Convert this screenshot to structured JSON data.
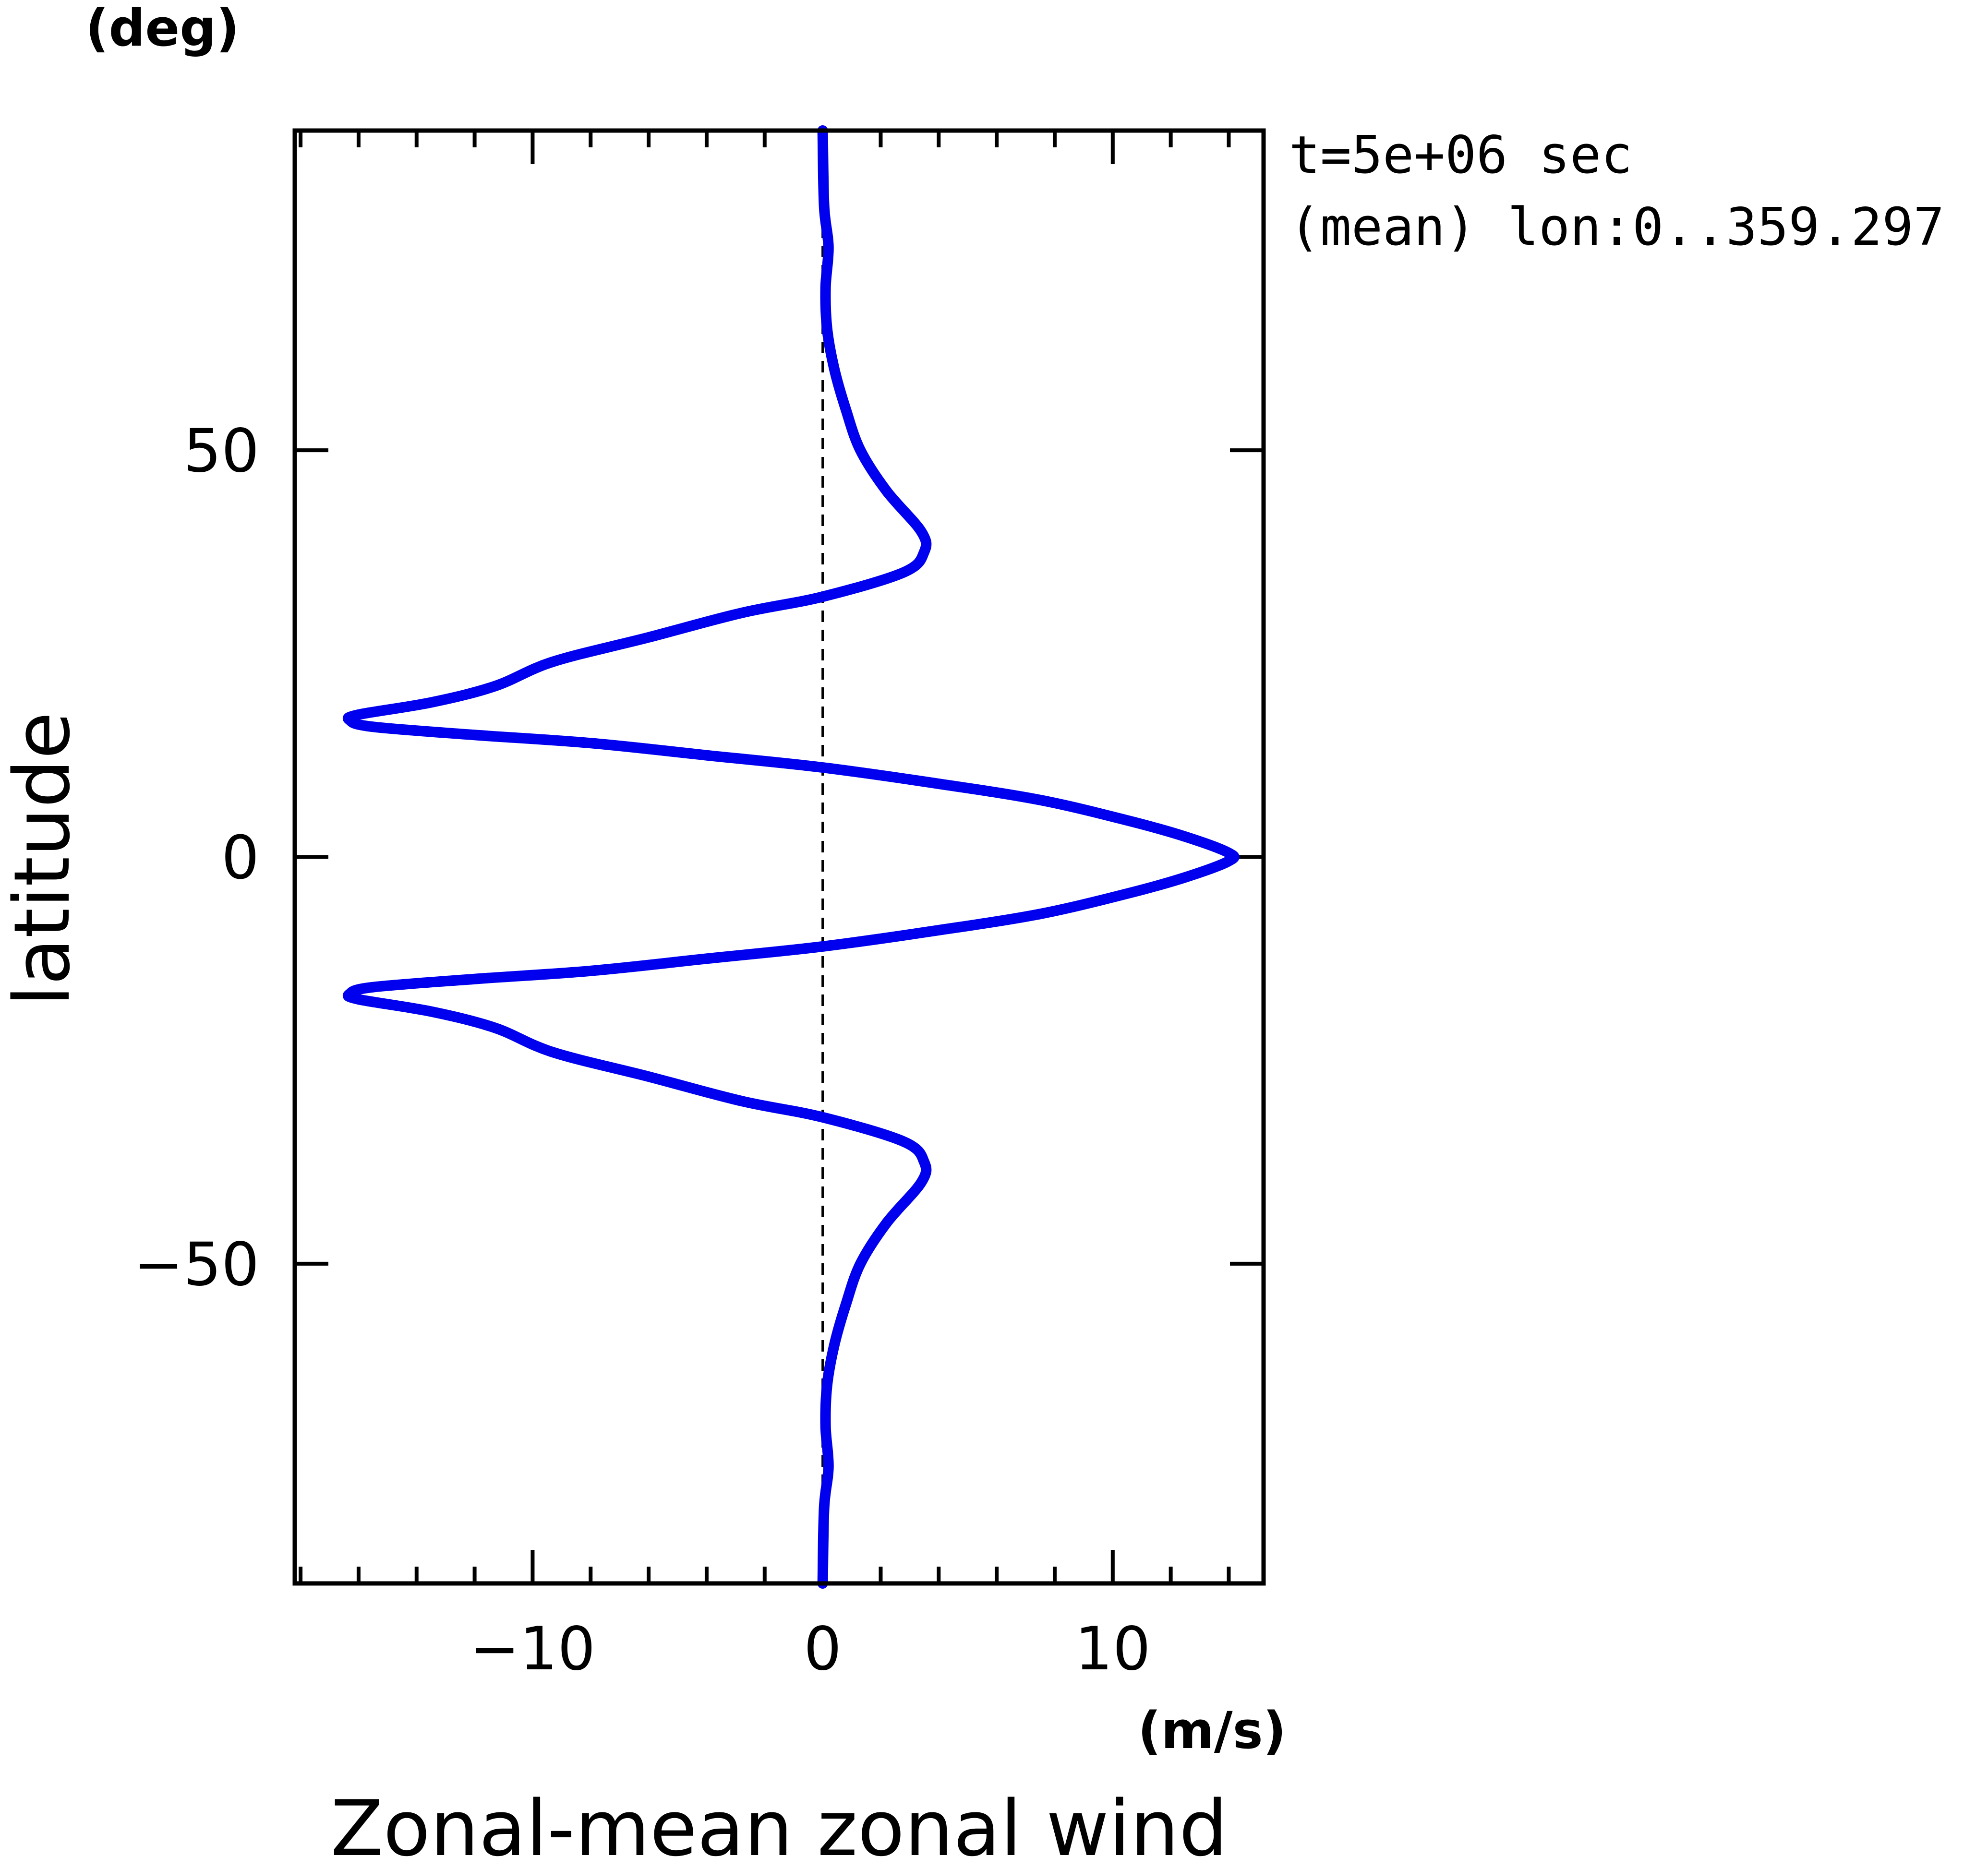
{
  "chart_data": {
    "type": "line",
    "title": "",
    "xlabel": "Zonal-mean zonal wind",
    "ylabel": "latitude",
    "x_unit": "(m/s)",
    "y_unit": "(deg)",
    "annotations": [
      "t=5e+06 sec",
      "(mean) lon:0..359.297"
    ],
    "xlim": [
      -18.2,
      15.2
    ],
    "ylim": [
      -89.3,
      89.3
    ],
    "x_ticks": [
      -10,
      0,
      10
    ],
    "x_tick_labels": [
      "−10",
      "0",
      "10"
    ],
    "y_ticks": [
      -50,
      0,
      50
    ],
    "y_tick_labels": [
      "−50",
      "0",
      "50"
    ],
    "x_minor_step": 2,
    "grid": false,
    "reference_line": {
      "x": 0,
      "style": "dashed"
    },
    "series": [
      {
        "color": "#0000ee",
        "points": [
          [
            0.0,
            89.3
          ],
          [
            0.05,
            80
          ],
          [
            0.2,
            75
          ],
          [
            0.1,
            70
          ],
          [
            0.15,
            65
          ],
          [
            0.4,
            60
          ],
          [
            0.8,
            55
          ],
          [
            1.3,
            50
          ],
          [
            2.2,
            45
          ],
          [
            3.4,
            40
          ],
          [
            3.5,
            37.5
          ],
          [
            2.8,
            35
          ],
          [
            0.0,
            32
          ],
          [
            -2.8,
            30
          ],
          [
            -6.0,
            27
          ],
          [
            -9.3,
            24
          ],
          [
            -11.3,
            21
          ],
          [
            -13.5,
            19
          ],
          [
            -16.0,
            17.5
          ],
          [
            -16.3,
            16.8
          ],
          [
            -15.5,
            16
          ],
          [
            -12.0,
            15
          ],
          [
            -8.0,
            14
          ],
          [
            -4.0,
            12.5
          ],
          [
            0.0,
            11
          ],
          [
            4.0,
            9
          ],
          [
            7.5,
            7
          ],
          [
            10.5,
            4.5
          ],
          [
            12.5,
            2.5
          ],
          [
            14.0,
            0.5
          ],
          [
            14.0,
            -0.5
          ],
          [
            12.5,
            -2.5
          ],
          [
            10.5,
            -4.5
          ],
          [
            7.5,
            -7
          ],
          [
            4.0,
            -9
          ],
          [
            0.0,
            -11
          ],
          [
            -4.0,
            -12.5
          ],
          [
            -8.0,
            -14
          ],
          [
            -12.0,
            -15
          ],
          [
            -15.5,
            -16
          ],
          [
            -16.3,
            -16.8
          ],
          [
            -16.0,
            -17.5
          ],
          [
            -13.5,
            -19
          ],
          [
            -11.3,
            -21
          ],
          [
            -9.3,
            -24
          ],
          [
            -6.0,
            -27
          ],
          [
            -2.8,
            -30
          ],
          [
            0.0,
            -32
          ],
          [
            2.8,
            -35
          ],
          [
            3.5,
            -37.5
          ],
          [
            3.4,
            -40
          ],
          [
            2.2,
            -45
          ],
          [
            1.3,
            -50
          ],
          [
            0.8,
            -55
          ],
          [
            0.4,
            -60
          ],
          [
            0.15,
            -65
          ],
          [
            0.1,
            -70
          ],
          [
            0.2,
            -75
          ],
          [
            0.05,
            -80
          ],
          [
            0.0,
            -89.3
          ]
        ]
      }
    ]
  }
}
